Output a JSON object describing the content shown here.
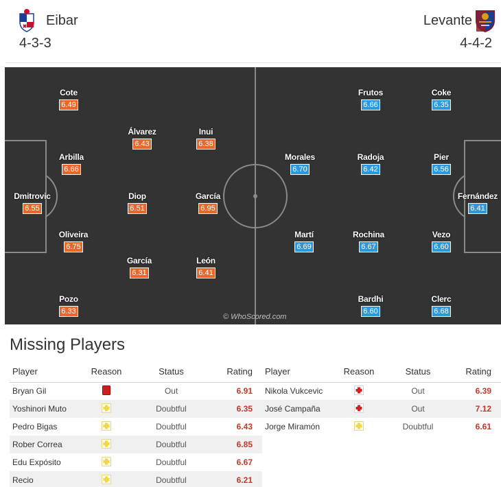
{
  "header": {
    "home": {
      "name": "Eibar",
      "formation": "4-3-3",
      "crest": "eibar-crest-icon"
    },
    "away": {
      "name": "Levante",
      "formation": "4-4-2",
      "crest": "levante-crest-icon"
    }
  },
  "colors": {
    "home_rating": "#e8672a",
    "away_rating": "#2d98da",
    "pitch": "#333333",
    "missing_rating": "#c0392b"
  },
  "pitch": {
    "watermark": "© WhoScored.com",
    "home_players": [
      {
        "name": "Cote",
        "rating": "6.49"
      },
      {
        "name": "Álvarez",
        "rating": "6.43"
      },
      {
        "name": "Inui",
        "rating": "6.38"
      },
      {
        "name": "Arbilla",
        "rating": "6.66"
      },
      {
        "name": "Dmitrovic",
        "rating": "6.55"
      },
      {
        "name": "Diop",
        "rating": "6.51"
      },
      {
        "name": "García",
        "rating": "6.95"
      },
      {
        "name": "Oliveira",
        "rating": "6.75"
      },
      {
        "name": "García",
        "rating": "6.31"
      },
      {
        "name": "León",
        "rating": "6.41"
      },
      {
        "name": "Pozo",
        "rating": "6.33"
      }
    ],
    "away_players": [
      {
        "name": "Frutos",
        "rating": "6.66"
      },
      {
        "name": "Coke",
        "rating": "6.35"
      },
      {
        "name": "Morales",
        "rating": "6.70"
      },
      {
        "name": "Radoja",
        "rating": "6.42"
      },
      {
        "name": "Pier",
        "rating": "6.56"
      },
      {
        "name": "Fernández",
        "rating": "6.41"
      },
      {
        "name": "Martí",
        "rating": "6.69"
      },
      {
        "name": "Rochina",
        "rating": "6.67"
      },
      {
        "name": "Vezo",
        "rating": "6.60"
      },
      {
        "name": "Bardhi",
        "rating": "6.60"
      },
      {
        "name": "Clerc",
        "rating": "6.68"
      }
    ]
  },
  "missing": {
    "title": "Missing Players",
    "columns": {
      "player": "Player",
      "reason": "Reason",
      "status": "Status",
      "rating": "Rating"
    },
    "home": [
      {
        "player": "Bryan Gil",
        "reason_icon": "red-card-icon",
        "status": "Out",
        "rating": "6.91"
      },
      {
        "player": "Yoshinori Muto",
        "reason_icon": "doubtful-cross-icon",
        "status": "Doubtful",
        "rating": "6.35"
      },
      {
        "player": "Pedro Bigas",
        "reason_icon": "doubtful-cross-icon",
        "status": "Doubtful",
        "rating": "6.43"
      },
      {
        "player": "Rober Correa",
        "reason_icon": "doubtful-cross-icon",
        "status": "Doubtful",
        "rating": "6.85"
      },
      {
        "player": "Edu Expósito",
        "reason_icon": "doubtful-cross-icon",
        "status": "Doubtful",
        "rating": "6.67"
      },
      {
        "player": "Recio",
        "reason_icon": "doubtful-cross-icon",
        "status": "Doubtful",
        "rating": "6.21"
      }
    ],
    "away": [
      {
        "player": "Nikola Vukcevic",
        "reason_icon": "injury-cross-icon",
        "status": "Out",
        "rating": "6.39"
      },
      {
        "player": "José Campaña",
        "reason_icon": "injury-cross-icon",
        "status": "Out",
        "rating": "7.12"
      },
      {
        "player": "Jorge Miramón",
        "reason_icon": "doubtful-cross-icon",
        "status": "Doubtful",
        "rating": "6.61"
      }
    ]
  }
}
